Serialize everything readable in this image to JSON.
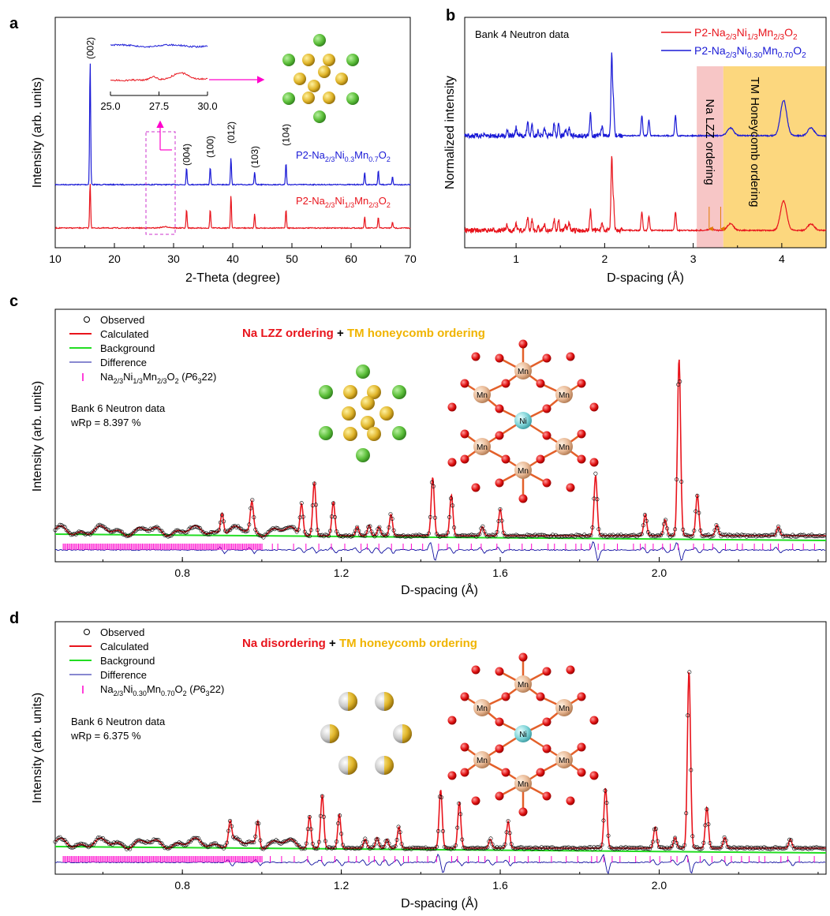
{
  "colors": {
    "red": "#e8141c",
    "blue": "#1a1ad6",
    "green": "#22dd22",
    "magenta": "#ff00cc",
    "pink_band": "#f7c6c6",
    "gold_band": "#fcd77e",
    "navy": "#1010a0"
  },
  "chart_data": [
    {
      "panel": "a",
      "type": "line",
      "xlabel": "2-Theta (degree)",
      "ylabel": "Intensity (arb. units)",
      "xlim": [
        10,
        70
      ],
      "xticks": [
        "10",
        "20",
        "30",
        "40",
        "50",
        "60",
        "70"
      ],
      "series": [
        {
          "name": "P2-Na2/3Ni0.3Mn0.7O2",
          "color": "#1a1ad6",
          "peaks_2theta": [
            15.9,
            32.2,
            36.2,
            39.7,
            43.7,
            49.0,
            62.3,
            64.6,
            67.0
          ]
        },
        {
          "name": "P2-Na2/3Ni1/3Mn2/3O2",
          "color": "#e8141c",
          "peaks_2theta": [
            15.9,
            32.2,
            36.2,
            39.7,
            43.7,
            49.0,
            62.3,
            64.6,
            67.0
          ]
        }
      ],
      "peak_labels": [
        {
          "hkl": "(002)",
          "x": 15.9
        },
        {
          "hkl": "(004)",
          "x": 32.2
        },
        {
          "hkl": "(100)",
          "x": 36.2
        },
        {
          "hkl": "(012)",
          "x": 39.7
        },
        {
          "hkl": "(103)",
          "x": 43.7
        },
        {
          "hkl": "(104)",
          "x": 49.0
        }
      ],
      "inset": {
        "xlim": [
          25.0,
          30.0
        ],
        "xticks": [
          "25.0",
          "27.5",
          "30.0"
        ]
      },
      "zoom_box_x": [
        25.0,
        30.0
      ]
    },
    {
      "panel": "b",
      "type": "line",
      "title": "Bank 4 Neutron data",
      "xlabel": "D-spacing (Å)",
      "ylabel": "Normalized intensity",
      "xlim": [
        0.42,
        4.5
      ],
      "xticks": [
        "1",
        "2",
        "3",
        "4"
      ],
      "series": [
        {
          "name": "P2-Na2/3Ni1/3Mn2/3O2",
          "color": "#e8141c"
        },
        {
          "name": "P2-Na2/3Ni0.30Mn0.70O2",
          "color": "#1a1ad6"
        }
      ],
      "bands": [
        {
          "label": "Na LZZ ordering",
          "x": [
            3.04,
            3.34
          ],
          "color": "#f7c6c6"
        },
        {
          "label": "TM Honeycomb ordering",
          "x": [
            3.34,
            4.5
          ],
          "color": "#fcd77e"
        }
      ],
      "arrows_x": [
        3.18,
        3.31
      ]
    },
    {
      "panel": "c",
      "type": "line",
      "xlabel": "D-spacing (Å)",
      "ylabel": "Intensity (arb. units)",
      "xlim": [
        0.48,
        2.42
      ],
      "xticks": [
        "0.8",
        "1.2",
        "1.6",
        "2.0"
      ],
      "headline": [
        "Na LZZ ordering",
        " + ",
        "TM honeycomb ordering"
      ],
      "legend": [
        "Observed",
        "Calculated",
        "Background",
        "Difference",
        "Na2/3Ni1/3Mn2/3O2 (P6322)"
      ],
      "bank": "Bank 6 Neutron data",
      "wrp": "wRp = 8.397 %",
      "peaks": [
        [
          0.9,
          0.12
        ],
        [
          0.975,
          0.16
        ],
        [
          1.1,
          0.18
        ],
        [
          1.132,
          0.3
        ],
        [
          1.18,
          0.19
        ],
        [
          1.24,
          0.05
        ],
        [
          1.27,
          0.06
        ],
        [
          1.295,
          0.05
        ],
        [
          1.325,
          0.12
        ],
        [
          1.43,
          0.33
        ],
        [
          1.477,
          0.23
        ],
        [
          1.555,
          0.05
        ],
        [
          1.6,
          0.15
        ],
        [
          1.84,
          0.34
        ],
        [
          1.965,
          0.12
        ],
        [
          2.015,
          0.09
        ],
        [
          2.05,
          1.0
        ],
        [
          2.096,
          0.23
        ],
        [
          2.145,
          0.06
        ],
        [
          2.3,
          0.05
        ]
      ]
    },
    {
      "panel": "d",
      "type": "line",
      "xlabel": "D-spacing (Å)",
      "ylabel": "Intensity (arb. units)",
      "xlim": [
        0.48,
        2.42
      ],
      "xticks": [
        "0.8",
        "1.2",
        "1.6",
        "2.0"
      ],
      "headline": [
        "Na disordering",
        " + ",
        "TM honeycomb ordering"
      ],
      "legend": [
        "Observed",
        "Calculated",
        "Background",
        "Difference",
        "Na2/3Ni0.30Mn0.70O2 (P6322)"
      ],
      "bank": "Bank 6 Neutron data",
      "wrp": "wRp = 6.375 %",
      "peaks": [
        [
          0.92,
          0.12
        ],
        [
          0.99,
          0.14
        ],
        [
          1.12,
          0.18
        ],
        [
          1.152,
          0.3
        ],
        [
          1.195,
          0.19
        ],
        [
          1.26,
          0.05
        ],
        [
          1.29,
          0.06
        ],
        [
          1.315,
          0.05
        ],
        [
          1.345,
          0.12
        ],
        [
          1.45,
          0.33
        ],
        [
          1.497,
          0.26
        ],
        [
          1.575,
          0.05
        ],
        [
          1.62,
          0.15
        ],
        [
          1.865,
          0.34
        ],
        [
          1.99,
          0.12
        ],
        [
          2.04,
          0.06
        ],
        [
          2.075,
          1.0
        ],
        [
          2.12,
          0.23
        ],
        [
          2.165,
          0.06
        ],
        [
          2.33,
          0.05
        ]
      ]
    }
  ],
  "panels": {
    "a": {
      "letter": "a",
      "label_blue": {
        "pre": "P2-Na",
        "s1": "2/3",
        "m1": "Ni",
        "s2": "0.3",
        "m2": "Mn",
        "s3": "0.7",
        "m3": "O",
        "s4": "2"
      },
      "label_red": {
        "pre": "P2-Na",
        "s1": "2/3",
        "m1": "Ni",
        "s2": "1/3",
        "m2": "Mn",
        "s3": "2/3",
        "m3": "O",
        "s4": "2"
      }
    },
    "b": {
      "letter": "b",
      "legend_red": {
        "pre": "P2-Na",
        "s1": "2/3",
        "m1": "Ni",
        "s2": "1/3",
        "m2": "Mn",
        "s3": "2/3",
        "m3": "O",
        "s4": "2"
      },
      "legend_blue": {
        "pre": "P2-Na",
        "s1": "2/3",
        "m1": "Ni",
        "s2": "0.30",
        "m2": "Mn",
        "s3": "0.70",
        "m3": "O",
        "s4": "2"
      }
    },
    "c": {
      "letter": "c",
      "phase": {
        "pre": "Na",
        "s1": "2/3",
        "m1": "Ni",
        "s2": "1/3",
        "m2": "Mn",
        "s3": "2/3",
        "m3": "O",
        "s4": "2",
        "sg_open": " (",
        "sg_p": "P",
        "sg_6": "6",
        "sg_3": "3",
        "sg_22": "22",
        "sg_close": ")"
      }
    },
    "d": {
      "letter": "d",
      "phase": {
        "pre": "Na",
        "s1": "2/3",
        "m1": "Ni",
        "s2": "0.30",
        "m2": "Mn",
        "s3": "0.70",
        "m3": "O",
        "s4": "2",
        "sg_open": " (",
        "sg_p": "P",
        "sg_6": "6",
        "sg_3": "3",
        "sg_22": "22",
        "sg_close": ")"
      }
    }
  },
  "structure": {
    "mn": "Mn",
    "ni": "Ni"
  }
}
